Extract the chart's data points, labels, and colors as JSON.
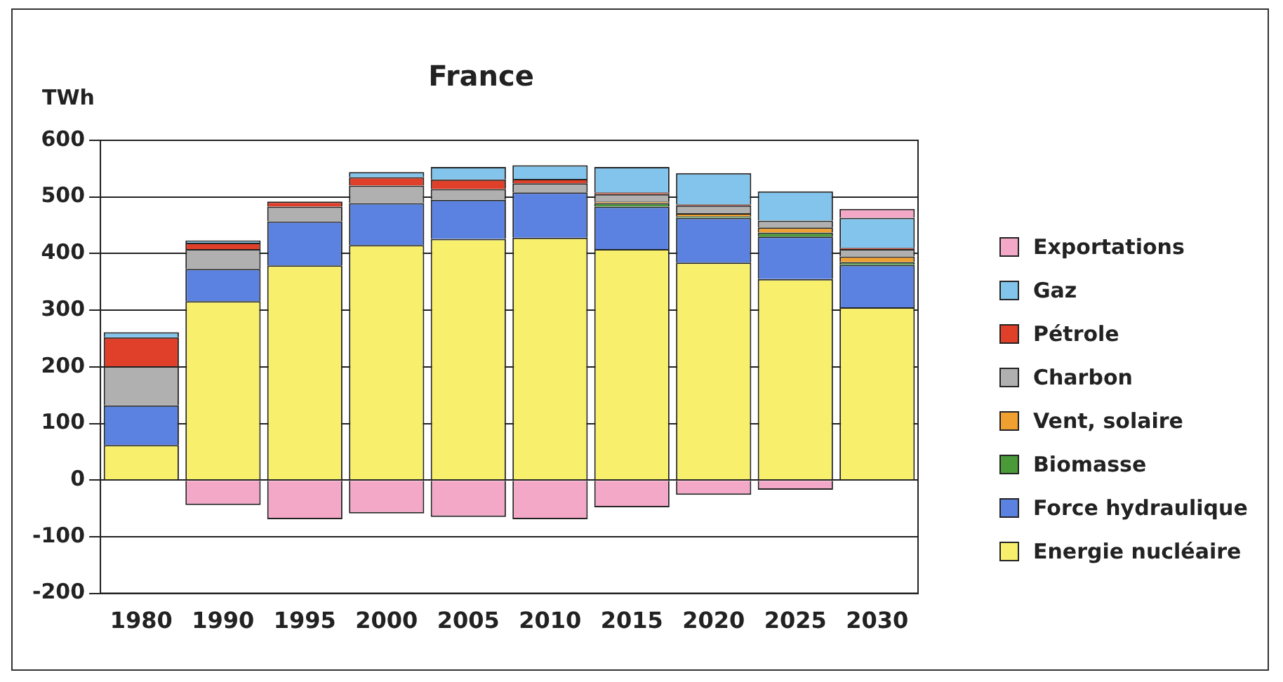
{
  "chart_data": {
    "type": "bar",
    "title": "France",
    "ylabel": "TWh",
    "stacked": true,
    "categories": [
      "1980",
      "1990",
      "1995",
      "2000",
      "2005",
      "2010",
      "2015",
      "2020",
      "2025",
      "2030"
    ],
    "series": [
      {
        "name": "Energie nucléaire",
        "color": "#f8f06c",
        "values": [
          62,
          316,
          379,
          415,
          426,
          428,
          408,
          384,
          355,
          305
        ]
      },
      {
        "name": "Force hydraulique",
        "color": "#5b82e0",
        "values": [
          70,
          57,
          78,
          74,
          69,
          80,
          75,
          79,
          75,
          75
        ]
      },
      {
        "name": "Biomasse",
        "color": "#4a9a3a",
        "values": [
          null,
          null,
          null,
          null,
          null,
          null,
          6,
          3,
          7,
          5
        ]
      },
      {
        "name": "Vent, solaire",
        "color": "#f0a030",
        "values": [
          null,
          null,
          null,
          null,
          null,
          null,
          3,
          5,
          9,
          10
        ]
      },
      {
        "name": "Charbon",
        "color": "#b0b0b0",
        "values": [
          69,
          35,
          26,
          31,
          19,
          16,
          13,
          14,
          12,
          13
        ]
      },
      {
        "name": "Pétrole",
        "color": "#e0402a",
        "values": [
          51,
          11,
          9,
          15,
          17,
          8,
          3,
          2,
          null,
          2
        ]
      },
      {
        "name": "Gaz",
        "color": "#82c4ec",
        "values": [
          9,
          4,
          null,
          9,
          22,
          24,
          45,
          55,
          52,
          53
        ]
      },
      {
        "name": "Exportations",
        "color": "#f4a8c8",
        "values": [
          null,
          -44,
          -69,
          -59,
          -65,
          -69,
          -48,
          -26,
          -17,
          16
        ]
      }
    ],
    "ylim": [
      -200,
      600
    ],
    "yticks": [
      -200,
      -100,
      0,
      100,
      200,
      300,
      400,
      500,
      600
    ],
    "grid": "y",
    "legend": "right"
  }
}
